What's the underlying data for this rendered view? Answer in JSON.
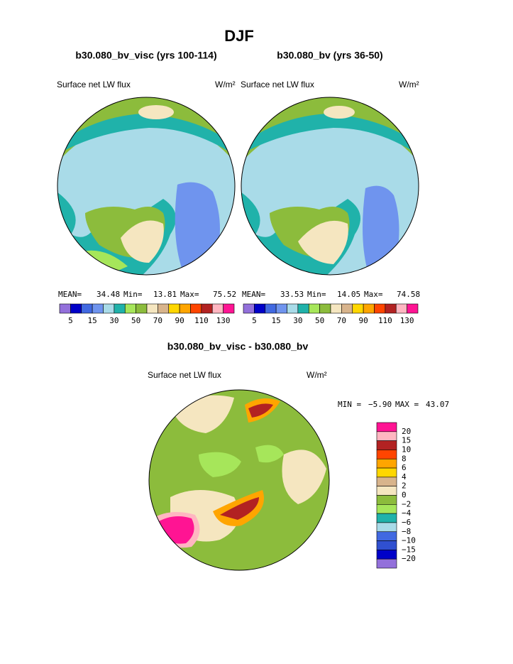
{
  "title": "DJF",
  "panels": [
    {
      "subtitle": "b30.080_bv_visc (yrs 100-114)",
      "left_label": "Surface net LW flux",
      "units": "W/m²",
      "stats": [
        "MEAN=",
        "34.48",
        "Min=",
        "13.81",
        "Max=",
        "75.52"
      ]
    },
    {
      "subtitle": "b30.080_bv (yrs 36-50)",
      "left_label": "Surface net LW flux",
      "units": "W/m²",
      "stats": [
        "MEAN=",
        "33.53",
        "Min=",
        "14.05",
        "Max=",
        "74.58"
      ]
    }
  ],
  "abs_colorbar": {
    "colors": [
      "#9370db",
      "#0000c8",
      "#4169e1",
      "#6f94ee",
      "#a9dbe8",
      "#20b2aa",
      "#a6e65a",
      "#8cbc3c",
      "#f5e6c0",
      "#d8b48c",
      "#ffd700",
      "#ffa500",
      "#ff4500",
      "#b22222",
      "#ffb6c1",
      "#ff1493"
    ],
    "labels": [
      "5",
      "15",
      "30",
      "50",
      "70",
      "90",
      "110",
      "130"
    ]
  },
  "diff": {
    "title": "b30.080_bv_visc - b30.080_bv",
    "left_label": "Surface net LW flux",
    "units": "W/m²",
    "stats": [
      "MIN =",
      "−5.90",
      "MAX =",
      "43.07"
    ]
  },
  "diff_colorbar": {
    "colors": [
      "#ff1493",
      "#ffb6c1",
      "#b22222",
      "#ff4500",
      "#ffa500",
      "#ffd700",
      "#d8b48c",
      "#f5e6c0",
      "#8cbc3c",
      "#a6e65a",
      "#20b2aa",
      "#a9dbe8",
      "#4169e1",
      "#3050d0",
      "#0000c8",
      "#9370db"
    ],
    "labels": [
      "20",
      "15",
      "10",
      "8",
      "6",
      "4",
      "2",
      "0",
      "−2",
      "−4",
      "−6",
      "−8",
      "−10",
      "−15",
      "−20"
    ]
  }
}
